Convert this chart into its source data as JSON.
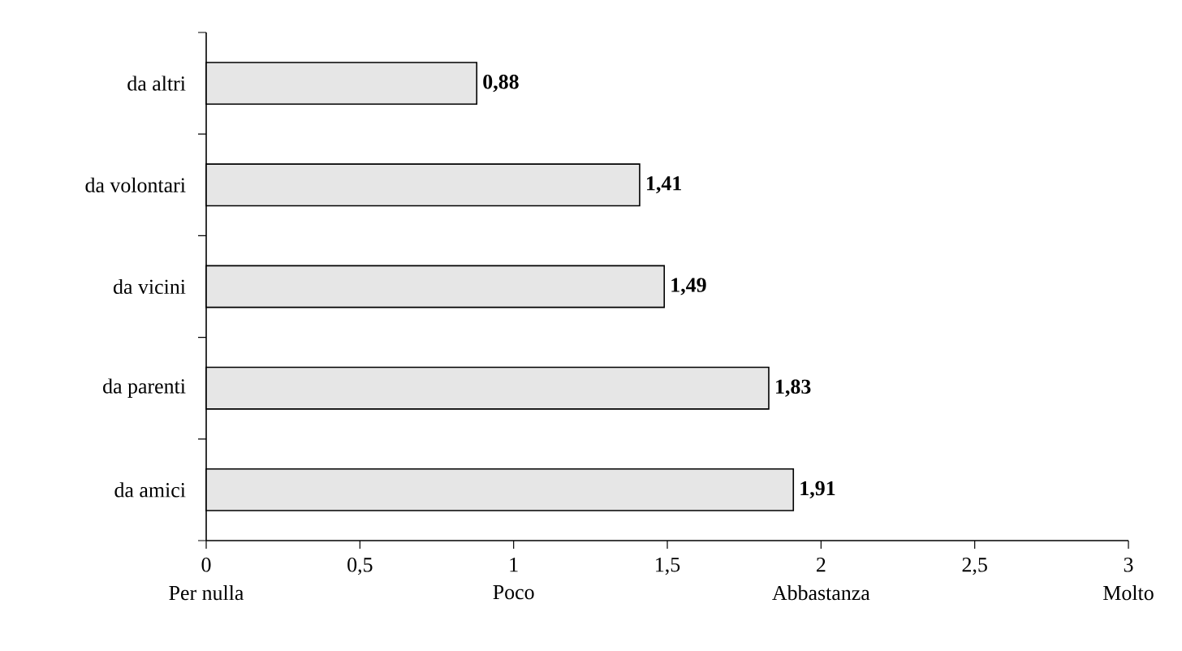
{
  "chart_data": {
    "type": "bar",
    "orientation": "horizontal",
    "categories": [
      "da altri",
      "da volontari",
      "da vicini",
      "da parenti",
      "da amici"
    ],
    "values": [
      0.88,
      1.41,
      1.49,
      1.83,
      1.91
    ],
    "value_labels": [
      "0,88",
      "1,41",
      "1,49",
      "1,83",
      "1,91"
    ],
    "color": "#e6e6e6",
    "xlim": [
      0,
      3
    ],
    "xticks": [
      0,
      {
        "value": 0.5,
        "label": "0,5"
      },
      1,
      {
        "value": 1.5,
        "label": "1,5"
      },
      2,
      {
        "value": 2.5,
        "label": "2,5"
      },
      3
    ],
    "annotations": [
      "Per nulla",
      "Poco",
      "Abbastanza",
      "Molto"
    ],
    "grid": false
  }
}
